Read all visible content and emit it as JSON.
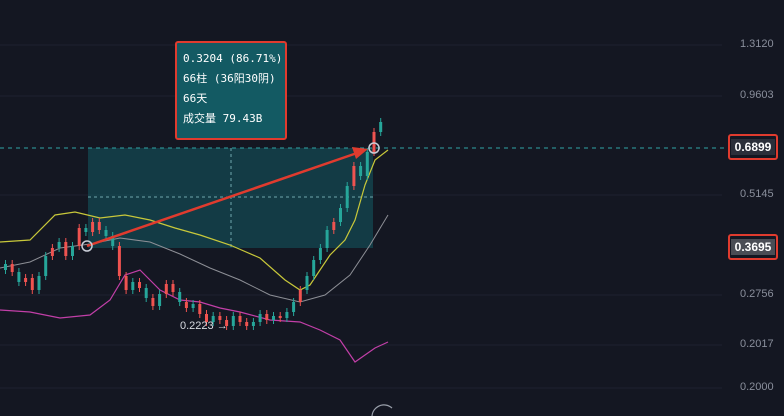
{
  "price_axis": {
    "labels": [
      "1.3120",
      "0.9603",
      "0.5145",
      "0.2756",
      "0.2017",
      "0.2000"
    ]
  },
  "current_price_tag": "0.6899",
  "start_price_tag": "0.3695",
  "measure_tooltip": {
    "change": "0.3204 (86.71%)",
    "bars": "66柱 (36阳30阴)",
    "days": "66天",
    "volume": "成交量 79.43B"
  },
  "low_marker": "0.2223 →",
  "colors": {
    "background": "#141722",
    "up_candle": "#26a69a",
    "down_candle": "#ef5350",
    "measure_box": "#135a63",
    "highlight": "#e03b2e",
    "upper_band": "#c8c83a",
    "lower_band": "#c23fa8",
    "mid_line": "#8d8f96"
  }
}
